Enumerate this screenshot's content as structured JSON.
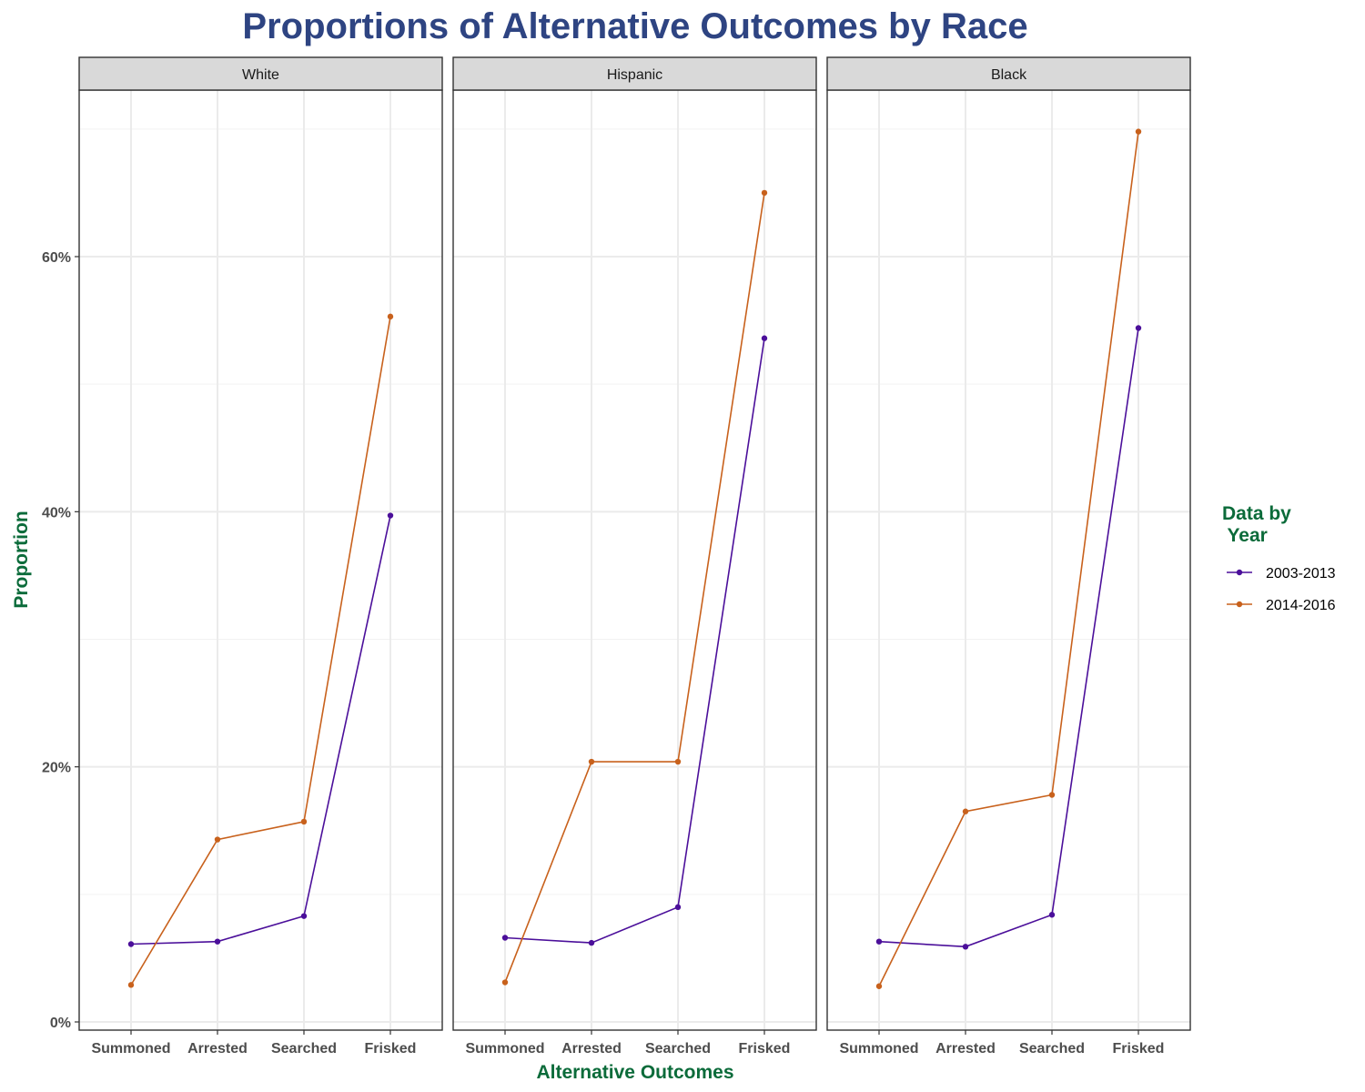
{
  "colors": {
    "title": "#2e4482",
    "axis_title": "#0b6b3a",
    "legend_title": "#0b6b3a",
    "strip_bg": "#d9d9d9",
    "grid": "#ebebeb"
  },
  "chart_data": {
    "type": "line",
    "title": "Proportions of Alternative Outcomes by Race",
    "xlabel": "Alternative Outcomes",
    "ylabel": "Proportion",
    "categories": [
      "Summoned",
      "Arrested",
      "Searched",
      "Frisked"
    ],
    "ylim": [
      0,
      0.73
    ],
    "yticks": [
      0,
      0.2,
      0.4,
      0.6
    ],
    "ytick_labels": [
      "0%",
      "20%",
      "40%",
      "60%"
    ],
    "grid": true,
    "legend": {
      "title": "Data by\n Year",
      "placement": "right",
      "entries": [
        {
          "label": "2003-2013",
          "color": "#4b0f9a"
        },
        {
          "label": "2014-2016",
          "color": "#c8611c"
        }
      ]
    },
    "panels": [
      {
        "name": "White",
        "series": [
          {
            "name": "2003-2013",
            "values": [
              0.061,
              0.063,
              0.083,
              0.397
            ]
          },
          {
            "name": "2014-2016",
            "values": [
              0.029,
              0.143,
              0.157,
              0.553
            ]
          }
        ]
      },
      {
        "name": "Hispanic",
        "series": [
          {
            "name": "2003-2013",
            "values": [
              0.066,
              0.062,
              0.09,
              0.536
            ]
          },
          {
            "name": "2014-2016",
            "values": [
              0.031,
              0.204,
              0.204,
              0.65
            ]
          }
        ]
      },
      {
        "name": "Black",
        "series": [
          {
            "name": "2003-2013",
            "values": [
              0.063,
              0.059,
              0.084,
              0.544
            ]
          },
          {
            "name": "2014-2016",
            "values": [
              0.028,
              0.165,
              0.178,
              0.698
            ]
          }
        ]
      }
    ]
  }
}
